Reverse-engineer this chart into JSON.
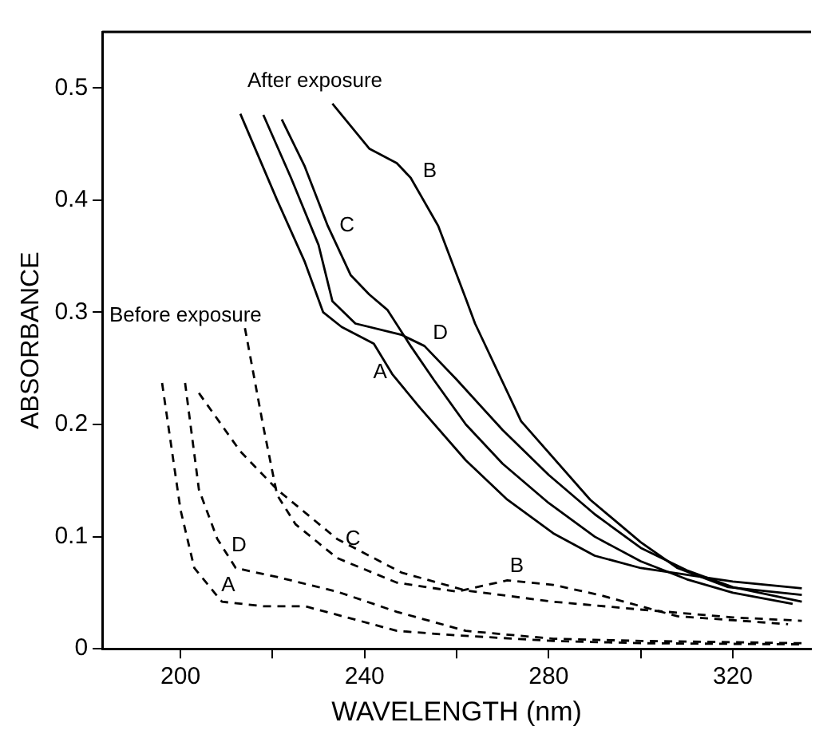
{
  "chart_data": {
    "type": "line",
    "xlabel": "WAVELENGTH (nm)",
    "ylabel": "ABSORBANCE",
    "xlim": [
      183,
      337
    ],
    "ylim": [
      0,
      0.55
    ],
    "xticks": [
      200,
      {
        "value": 220,
        "label": null
      },
      240,
      {
        "value": 260,
        "label": null
      },
      280,
      {
        "value": 300,
        "label": null
      },
      320
    ],
    "yticks": [
      0,
      0.1,
      0.2,
      0.3,
      0.4,
      0.5
    ],
    "grid": false,
    "legend": false,
    "series": [
      {
        "name": "A",
        "color": "#000000",
        "line_style": "solid",
        "x": [
          213,
          221,
          227,
          231,
          235,
          242,
          246,
          252,
          262,
          271,
          281,
          290,
          300,
          310,
          320,
          335
        ],
        "values": [
          0.477,
          0.4,
          0.345,
          0.3,
          0.287,
          0.272,
          0.245,
          0.215,
          0.168,
          0.133,
          0.103,
          0.083,
          0.072,
          0.066,
          0.06,
          0.054
        ]
      },
      {
        "name": "B",
        "color": "#000000",
        "line_style": "solid",
        "x": [
          233,
          241,
          247,
          250,
          256,
          262,
          264,
          274,
          289,
          300,
          308,
          319,
          335
        ],
        "values": [
          0.486,
          0.446,
          0.433,
          0.42,
          0.377,
          0.312,
          0.29,
          0.203,
          0.133,
          0.095,
          0.072,
          0.055,
          0.048
        ]
      },
      {
        "name": "C",
        "color": "#000000",
        "line_style": "solid",
        "x": [
          222,
          227,
          232,
          237,
          241,
          245,
          250,
          255,
          262,
          270,
          280,
          290,
          300,
          310,
          320,
          333
        ],
        "values": [
          0.472,
          0.43,
          0.377,
          0.333,
          0.316,
          0.302,
          0.27,
          0.24,
          0.2,
          0.165,
          0.13,
          0.1,
          0.078,
          0.062,
          0.05,
          0.04
        ]
      },
      {
        "name": "D",
        "color": "#000000",
        "line_style": "solid",
        "x": [
          218,
          224,
          230,
          233,
          238,
          248,
          253,
          260,
          270,
          280,
          290,
          300,
          310,
          320,
          335
        ],
        "values": [
          0.476,
          0.42,
          0.36,
          0.31,
          0.29,
          0.28,
          0.27,
          0.24,
          0.195,
          0.155,
          0.12,
          0.09,
          0.07,
          0.055,
          0.042
        ]
      },
      {
        "name": "A",
        "color": "#000000",
        "line_style": "dashed",
        "x": [
          196,
          200,
          203,
          209,
          218,
          227,
          238,
          247,
          260,
          281,
          300,
          335
        ],
        "values": [
          0.237,
          0.124,
          0.072,
          0.042,
          0.038,
          0.038,
          0.026,
          0.016,
          0.012,
          0.007,
          0.005,
          0.004
        ]
      },
      {
        "name": "B",
        "color": "#000000",
        "line_style": "dashed",
        "x": [
          214,
          218,
          221,
          225,
          234,
          247,
          260,
          271,
          281,
          291,
          300,
          308,
          332
        ],
        "values": [
          0.286,
          0.198,
          0.137,
          0.111,
          0.081,
          0.059,
          0.051,
          0.061,
          0.057,
          0.048,
          0.038,
          0.029,
          0.022
        ]
      },
      {
        "name": "C",
        "color": "#000000",
        "line_style": "dashed",
        "x": [
          204,
          213,
          221,
          234,
          248,
          262,
          281,
          300,
          320,
          335
        ],
        "values": [
          0.228,
          0.176,
          0.142,
          0.098,
          0.068,
          0.052,
          0.042,
          0.035,
          0.028,
          0.025
        ]
      },
      {
        "name": "D",
        "color": "#000000",
        "line_style": "dashed",
        "x": [
          201,
          204,
          208,
          212,
          221,
          234,
          247,
          262,
          281,
          300,
          335
        ],
        "values": [
          0.237,
          0.142,
          0.098,
          0.072,
          0.064,
          0.051,
          0.033,
          0.016,
          0.009,
          0.007,
          0.005
        ]
      }
    ],
    "annotations": [
      "After exposure",
      "Before exposure"
    ]
  }
}
